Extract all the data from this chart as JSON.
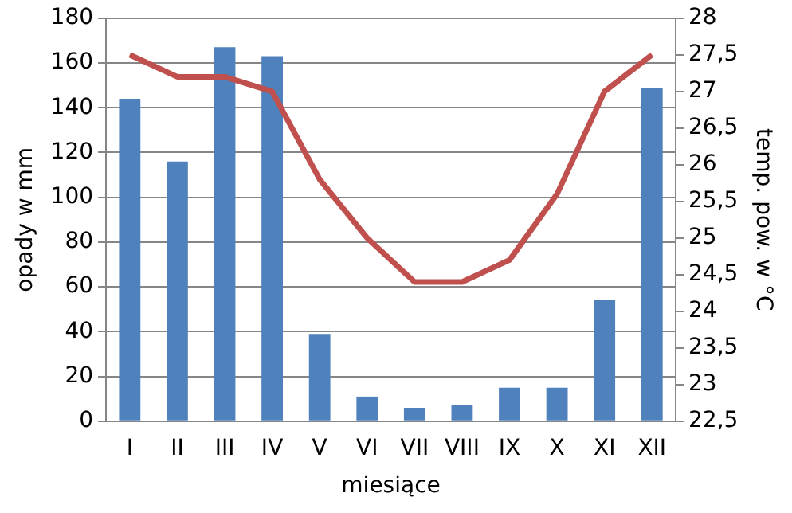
{
  "chart_data": {
    "type": "bar",
    "xlabel": "miesiące",
    "ylabel": "opady w mm",
    "y2label": "temp. pow. w °C",
    "categories": [
      "I",
      "II",
      "III",
      "IV",
      "V",
      "VI",
      "VII",
      "VIII",
      "IX",
      "X",
      "XI",
      "XII"
    ],
    "series": [
      {
        "color": "#4f81bd",
        "values": [
          144,
          116,
          167,
          163,
          39,
          11,
          6,
          7,
          15,
          15,
          54,
          149
        ]
      },
      {
        "type": "line",
        "axis": "y2",
        "color": "#c0504d",
        "marker": "none",
        "values": [
          27.5,
          27.2,
          27.2,
          27.0,
          25.8,
          25.0,
          24.4,
          24.4,
          24.7,
          25.6,
          27.0,
          27.5
        ]
      }
    ],
    "ylim": [
      0,
      180
    ],
    "yticks": [
      0,
      20,
      40,
      60,
      80,
      100,
      120,
      140,
      160,
      180
    ],
    "y2lim": [
      22.5,
      28
    ],
    "y2ticks": [
      {
        "value": 22.5,
        "label": "22,5"
      },
      23,
      {
        "value": 23.5,
        "label": "23,5"
      },
      24,
      {
        "value": 24.5,
        "label": "24,5"
      },
      25,
      {
        "value": 25.5,
        "label": "25,5"
      },
      26,
      {
        "value": 26.5,
        "label": "26,5"
      },
      27,
      {
        "value": 27.5,
        "label": "27,5"
      },
      28
    ],
    "grid": "y",
    "legend": false
  }
}
